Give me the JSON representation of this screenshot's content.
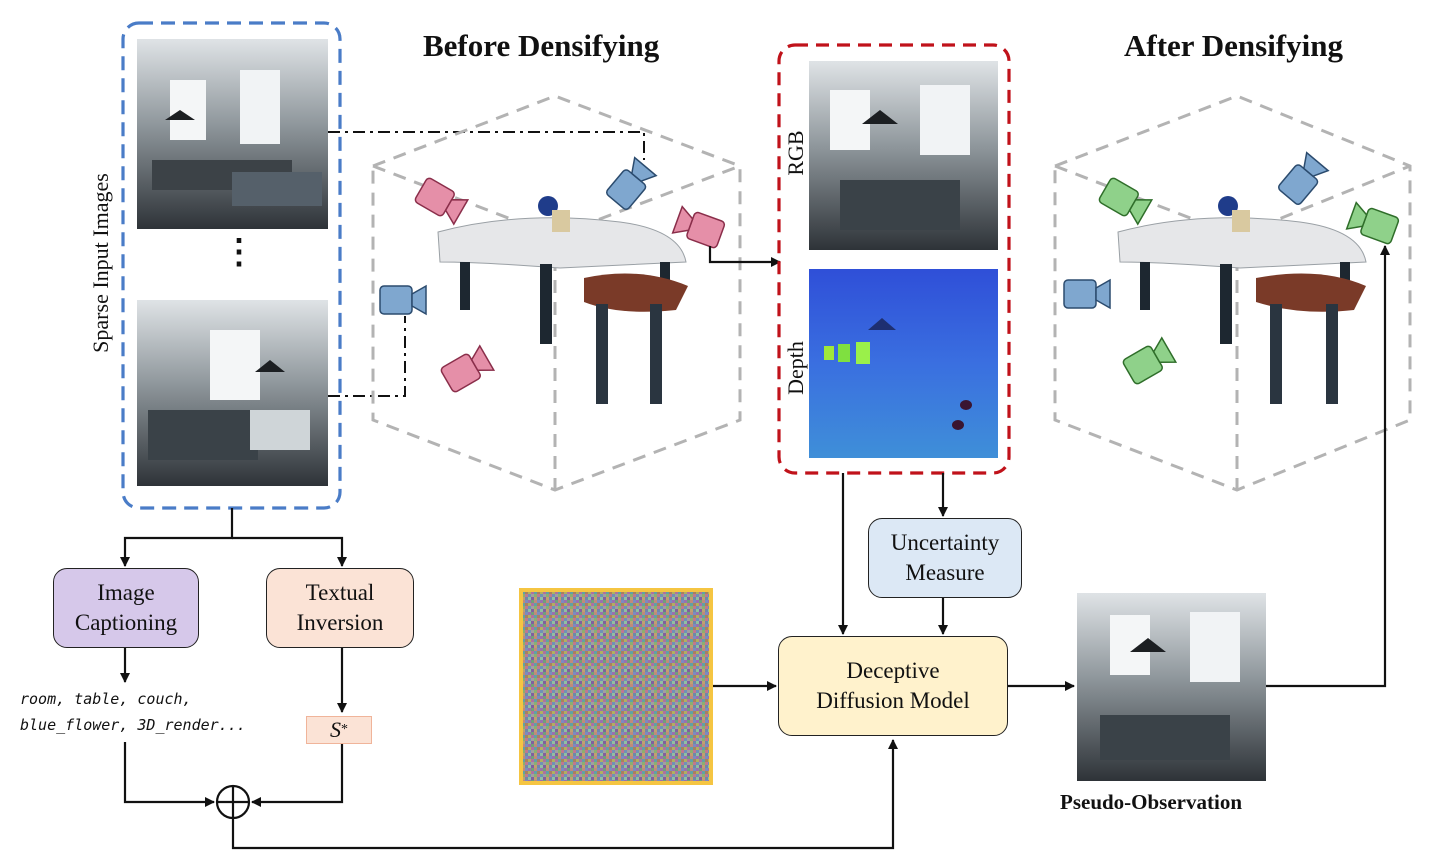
{
  "headings": {
    "before": "Before Densifying",
    "after": "After Densifying"
  },
  "sparse_label": "Sparse Input Images",
  "ellipsis": "⋮",
  "render_labels": {
    "rgb": "RGB",
    "depth": "Depth"
  },
  "boxes": {
    "captioning": "Image\nCaptioning",
    "inversion": "Textual\nInversion",
    "uncertainty": "Uncertainty\nMeasure",
    "diffusion": "Deceptive\nDiffusion Model"
  },
  "caption_output": "room, table, couch,\nblue_flower, 3D_render...",
  "token": {
    "symbol": "S",
    "subscript": "*"
  },
  "pseudo_label": "Pseudo-Observation",
  "colors": {
    "input_frame": "#4a7cc7",
    "render_frame": "#c0121a",
    "noise_frame": "#f5c542",
    "captioning_fill": "#d6c8ea",
    "inversion_fill": "#fbe3d6",
    "uncertainty_fill": "#dce8f5",
    "diffusion_fill": "#fff2cc",
    "camera_pink": "#e58fa8",
    "camera_blue": "#7fa7cf",
    "camera_green": "#8fd18a"
  }
}
